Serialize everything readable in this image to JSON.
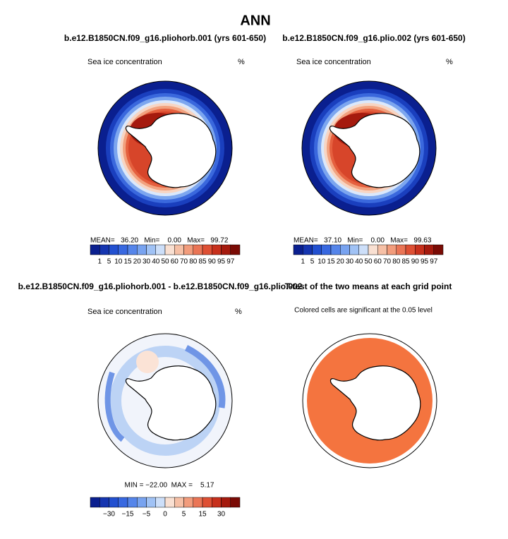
{
  "title": "ANN",
  "panels": [
    {
      "title": "b.e12.B1850CN.f09_g16.pliohorb.001 (yrs 601-650)",
      "left_label": "Sea ice concentration",
      "right_label": "%",
      "stats": "MEAN=   36.20   Min=    0.00   Max=   99.72"
    },
    {
      "title": "b.e12.B1850CN.f09_g16.plio.002 (yrs 601-650)",
      "left_label": "Sea ice concentration",
      "right_label": "%",
      "stats": "MEAN=   37.10   Min=    0.00   Max=   99.63"
    },
    {
      "title": "b.e12.B1850CN.f09_g16.pliohorb.001 - b.e12.B1850CN.f09_g16.plio.002",
      "left_label": "Sea ice concentration",
      "right_label": "%",
      "stats": "MIN = −22.00  MAX =    5.17"
    },
    {
      "title": "T-test of the two means at each grid point",
      "subtitle": "Colored cells are significant at the 0.05 level"
    }
  ],
  "colorbar": {
    "labels": [
      "1",
      "5",
      "10",
      "15",
      "20",
      "30",
      "40",
      "50",
      "60",
      "70",
      "80",
      "85",
      "90",
      "95",
      "97"
    ],
    "colors": [
      "#0a1f8f",
      "#1535b0",
      "#2250d0",
      "#3868e0",
      "#5585ea",
      "#78a3f0",
      "#a0c2f5",
      "#cddff9",
      "#f9e0d2",
      "#f6c0a6",
      "#f29c7c",
      "#ea7556",
      "#de5034",
      "#c7301c",
      "#a51a0e",
      "#7a0b05"
    ]
  },
  "diff_colorbar": {
    "labels": [
      null,
      "−30",
      null,
      "−15",
      null,
      "−5",
      null,
      "0",
      null,
      "5",
      null,
      "15",
      null,
      "30",
      null
    ],
    "colors": [
      "#0a1f8f",
      "#1535b0",
      "#2250d0",
      "#3868e0",
      "#5585ea",
      "#78a3f0",
      "#a0c2f5",
      "#cddff9",
      "#f9e0d2",
      "#f6c0a6",
      "#f29c7c",
      "#ea7556",
      "#de5034",
      "#c7301c",
      "#a51a0e",
      "#7a0b05"
    ]
  }
}
